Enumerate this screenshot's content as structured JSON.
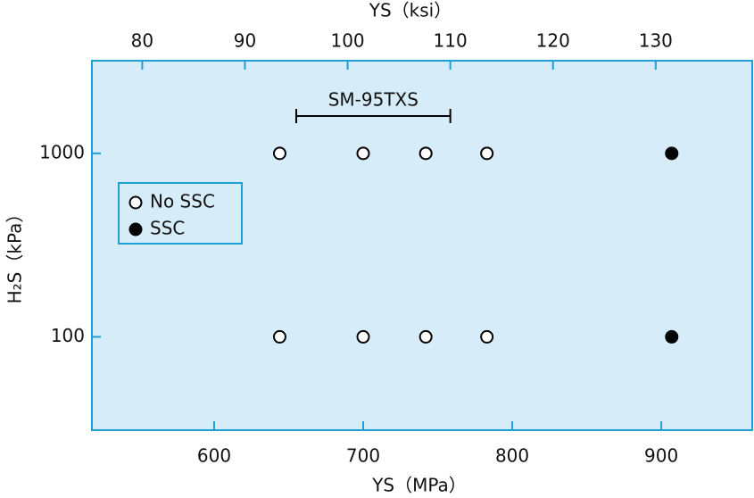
{
  "chart_data": {
    "type": "scatter",
    "title": "YS（ksi）",
    "x_label": "YS（MPa）",
    "y_label": "H₂S（kPa）",
    "xlim": [
      518,
      961
    ],
    "xticks": [
      600,
      700,
      800,
      900
    ],
    "x2lim": [
      75.1,
      139.4
    ],
    "x2ticks": [
      80,
      90,
      100,
      110,
      120,
      130
    ],
    "ylim": [
      31,
      3200
    ],
    "yticks": [
      100,
      1000
    ],
    "y_scale": "log",
    "background": "#d6ecf8",
    "frame_color": "#1ea0d6",
    "series": [
      {
        "name": "No SSC",
        "color": "#000000",
        "marker": "open",
        "x": [
          644,
          700,
          742,
          783,
          644,
          700,
          742,
          783
        ],
        "values": [
          1000,
          1000,
          1000,
          1000,
          100,
          100,
          100,
          100
        ]
      },
      {
        "name": "SSC",
        "color": "#000000",
        "marker": "filled",
        "x": [
          907,
          907
        ],
        "values": [
          1000,
          100
        ]
      }
    ],
    "annotation": {
      "text": "SM-95TXS",
      "x2_range": [
        95,
        110
      ]
    }
  }
}
